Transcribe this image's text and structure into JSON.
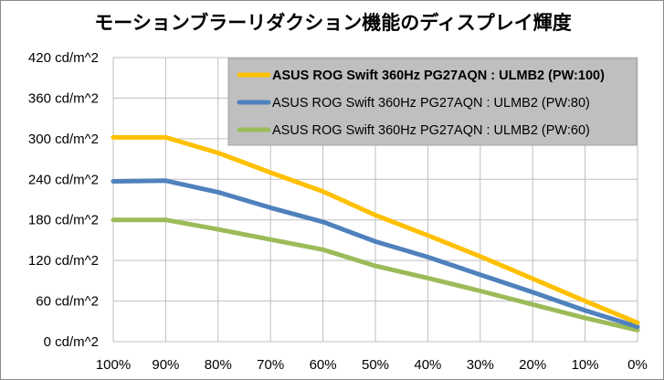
{
  "chart_data": {
    "type": "line",
    "title": "モーションブラーリダクション機能のディスプレイ輝度",
    "categories": [
      "100%",
      "90%",
      "80%",
      "70%",
      "60%",
      "50%",
      "40%",
      "30%",
      "20%",
      "10%",
      "0%"
    ],
    "y_ticks": [
      "0 cd/m^2",
      "60 cd/m^2",
      "120 cd/m^2",
      "180 cd/m^2",
      "240 cd/m^2",
      "300 cd/m^2",
      "360 cd/m^2",
      "420 cd/m^2"
    ],
    "ylim": [
      0,
      420
    ],
    "grid": true,
    "legend_position": "top-right",
    "series": [
      {
        "name": "ASUS ROG Swift 360Hz PG27AQN : ULMB2 (PW:100)",
        "color": "#ffc000",
        "bold": true,
        "values": [
          302,
          302,
          279,
          250,
          222,
          187,
          157,
          126,
          93,
          60,
          28
        ]
      },
      {
        "name": "ASUS ROG Swift 360Hz PG27AQN : ULMB2 (PW:80)",
        "color": "#4f81bd",
        "bold": false,
        "values": [
          237,
          238,
          221,
          198,
          177,
          148,
          125,
          99,
          73,
          46,
          22
        ]
      },
      {
        "name": "ASUS ROG Swift 360Hz PG27AQN : ULMB2 (PW:60)",
        "color": "#9bbb59",
        "bold": false,
        "values": [
          180,
          180,
          166,
          151,
          136,
          112,
          94,
          75,
          55,
          35,
          17
        ]
      }
    ]
  }
}
